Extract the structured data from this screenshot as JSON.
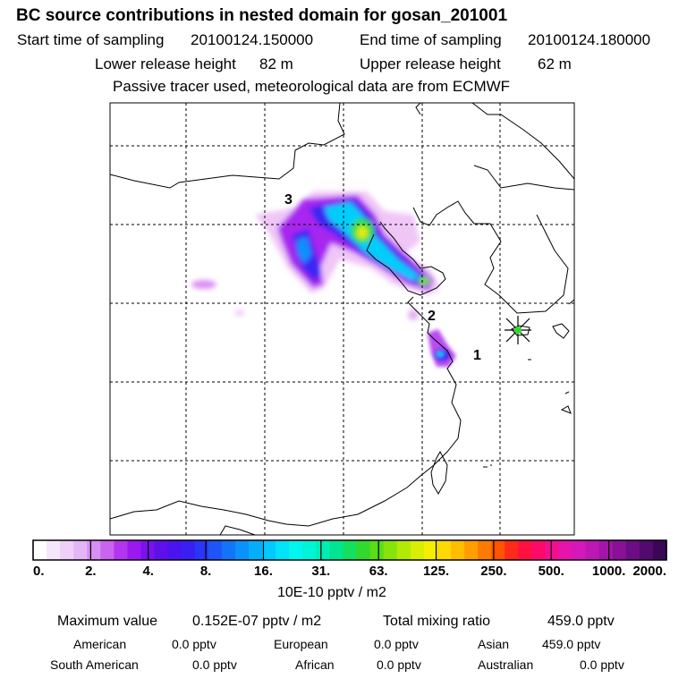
{
  "header": {
    "title": "BC  source contributions in nested domain for gosan_201001",
    "start_label": "Start time of sampling",
    "start_value": "20100124.150000",
    "end_label": "End time of sampling",
    "end_value": "20100124.180000",
    "lower_label": "Lower release height",
    "lower_value": "82 m",
    "upper_label": "Upper release height",
    "upper_value": "62 m",
    "note": "Passive tracer used, meteorological data are from ECMWF"
  },
  "chart_data": {
    "type": "heatmap",
    "title": "BC  source contributions in nested domain for gosan_201001",
    "units": "10E-10 pptv / m2",
    "grid": true,
    "markers": [
      {
        "label": "1",
        "kind": "cluster"
      },
      {
        "label": "2",
        "kind": "cluster"
      },
      {
        "label": "3",
        "kind": "cluster"
      },
      {
        "label": "",
        "kind": "receptor",
        "name": "gosan"
      }
    ],
    "colorbar": {
      "ticks": [
        "0.",
        "2.",
        "4.",
        "8.",
        "16.",
        "31.",
        "63.",
        "125.",
        "250.",
        "500.",
        "1000.",
        "2000."
      ],
      "colors": [
        "#ffffff",
        "#f6e6fb",
        "#efd0f8",
        "#e4b5f5",
        "#d88ff2",
        "#c864f0",
        "#b236ef",
        "#9b18ee",
        "#7a12ec",
        "#5e10ea",
        "#4a13f0",
        "#3a1ff3",
        "#2a35f5",
        "#1e55f7",
        "#1274f9",
        "#0a92fb",
        "#04aefc",
        "#02c8fc",
        "#00e3f8",
        "#00f6ef",
        "#00f5d6",
        "#00eeb6",
        "#00e590",
        "#14df5e",
        "#32d92c",
        "#59dd14",
        "#86e40a",
        "#b2ea05",
        "#d8ee02",
        "#f4ee00",
        "#ffd900",
        "#ffbd00",
        "#ff9e00",
        "#ff7b00",
        "#ff5400",
        "#ff2a1a",
        "#ff1040",
        "#fb0a6a",
        "#f30e90",
        "#e614ab",
        "#d418b9",
        "#bc18b4",
        "#a215a8",
        "#881197",
        "#6d0d84",
        "#520a6e",
        "#3a0756"
      ]
    }
  },
  "stats": {
    "max_label": "Maximum value",
    "max_value": "0.152E-07 pptv / m2",
    "total_label": "Total mixing ratio",
    "total_value": "459.0 pptv",
    "regions": [
      {
        "name": "American",
        "value": "0.0 pptv"
      },
      {
        "name": "European",
        "value": "0.0 pptv"
      },
      {
        "name": "Asian",
        "value": "459.0 pptv"
      },
      {
        "name": "South American",
        "value": "0.0 pptv"
      },
      {
        "name": "African",
        "value": "0.0 pptv"
      },
      {
        "name": "Australian",
        "value": "0.0 pptv"
      }
    ]
  }
}
